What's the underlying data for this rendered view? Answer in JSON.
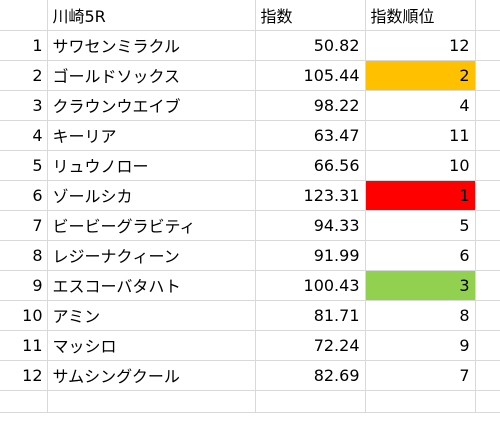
{
  "sheet": {
    "headers": {
      "name": "川崎5R",
      "index": "指数",
      "rank": "指数順位"
    },
    "highlight_colors": {
      "rank_1": "#FF0000",
      "rank_2": "#FFC000",
      "rank_3": "#92D050"
    },
    "rows": [
      {
        "num": "1",
        "name": "サワセンミラクル",
        "index": "50.82",
        "rank": "12"
      },
      {
        "num": "2",
        "name": "ゴールドソックス",
        "index": "105.44",
        "rank": "2"
      },
      {
        "num": "3",
        "name": "クラウンウエイブ",
        "index": "98.22",
        "rank": "4"
      },
      {
        "num": "4",
        "name": "キーリア",
        "index": "63.47",
        "rank": "11"
      },
      {
        "num": "5",
        "name": "リュウノロー",
        "index": "66.56",
        "rank": "10"
      },
      {
        "num": "6",
        "name": "ゾールシカ",
        "index": "123.31",
        "rank": "1"
      },
      {
        "num": "7",
        "name": "ビービーグラビティ",
        "index": "94.33",
        "rank": "5"
      },
      {
        "num": "8",
        "name": "レジーナクィーン",
        "index": "91.99",
        "rank": "6"
      },
      {
        "num": "9",
        "name": "エスコーバタハト",
        "index": "100.43",
        "rank": "3"
      },
      {
        "num": "10",
        "name": "アミン",
        "index": "81.71",
        "rank": "8"
      },
      {
        "num": "11",
        "name": "マッシロ",
        "index": "72.24",
        "rank": "9"
      },
      {
        "num": "12",
        "name": "サムシングクール",
        "index": "82.69",
        "rank": "7"
      }
    ]
  }
}
